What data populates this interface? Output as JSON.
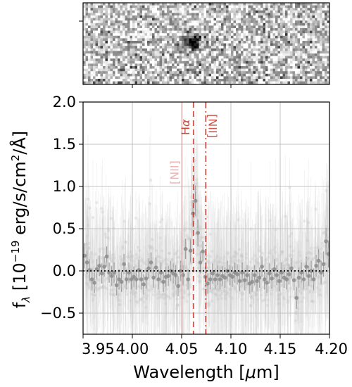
{
  "chart_data": [
    {
      "type": "heatmap",
      "panel": "2D spectrum cutout",
      "colormap": "grayscale (inverted)",
      "feature": "dark compact emission blob near 4.06 µm"
    },
    {
      "type": "scatter",
      "ylabel": "f$_\\lambda$ [10$^{-19}$ erg/s/cm$^2$/$\\AA$]",
      "ylabel_parts": {
        "f": "f",
        "lambda": "λ",
        "open": " [10",
        "exp": "−19",
        "mid": " erg/s/cm",
        "sq": "2",
        "end": "/Å]"
      },
      "xlabel_parts": {
        "pre": "Wavelength [",
        "mu": "μ",
        "post": "m]"
      },
      "xlim": [
        3.95,
        4.2
      ],
      "ylim": [
        -0.75,
        2.0
      ],
      "x_ticks": [
        3.95,
        4.0,
        4.05,
        4.1,
        4.15,
        4.2
      ],
      "x_tick_labels": [
        "3.95",
        "4.00",
        "4.05",
        "4.10",
        "4.15",
        "4.20"
      ],
      "y_ticks": [
        -0.5,
        0.0,
        0.5,
        1.0,
        1.5,
        2.0
      ],
      "y_tick_labels": [
        "−0.5",
        "0.0",
        "0.5",
        "1.0",
        "1.5",
        "2.0"
      ],
      "grid": true,
      "zero_line": {
        "y": 0.0,
        "style": "dotted",
        "color": "#222222"
      },
      "emission_lines": [
        {
          "label_main": "H",
          "label_sub": "α",
          "x": 4.062,
          "style": "dashed",
          "color": "#c0392b",
          "opacity": 0.85,
          "label_rotation": "vertical"
        },
        {
          "label": "[NII]",
          "x": 4.0745,
          "style": "dashdot",
          "color": "#c0392b",
          "opacity": 0.85,
          "label_rotation": "vertical"
        },
        {
          "label": "[NII]",
          "x": 4.0505,
          "style": "solid",
          "color": "#e8a0a0",
          "opacity": 0.45,
          "label_rotation": "vertical"
        }
      ],
      "series": [
        {
          "marker_color": "#8c8c8c",
          "points": [
            {
              "x": 3.9515,
              "y": 0.18,
              "err": 0.15
            },
            {
              "x": 3.954,
              "y": 0.1,
              "err": 0.14
            },
            {
              "x": 3.9565,
              "y": 0.01,
              "err": 0.13
            },
            {
              "x": 3.959,
              "y": -0.1,
              "err": 0.13
            },
            {
              "x": 3.9615,
              "y": -0.14,
              "err": 0.12
            },
            {
              "x": 3.964,
              "y": 0.02,
              "err": 0.12
            },
            {
              "x": 3.9665,
              "y": 0.06,
              "err": 0.12
            },
            {
              "x": 3.969,
              "y": -0.03,
              "err": 0.12
            },
            {
              "x": 3.9715,
              "y": 0.05,
              "err": 0.12
            },
            {
              "x": 3.974,
              "y": 0.17,
              "err": 0.12
            },
            {
              "x": 3.9765,
              "y": -0.02,
              "err": 0.12
            },
            {
              "x": 3.979,
              "y": -0.06,
              "err": 0.12
            },
            {
              "x": 3.9815,
              "y": -0.02,
              "err": 0.12
            },
            {
              "x": 3.984,
              "y": -0.17,
              "err": 0.12
            },
            {
              "x": 3.9865,
              "y": -0.1,
              "err": 0.12
            },
            {
              "x": 3.989,
              "y": -0.13,
              "err": 0.12
            },
            {
              "x": 3.9915,
              "y": 0.08,
              "err": 0.12
            },
            {
              "x": 3.994,
              "y": -0.1,
              "err": 0.12
            },
            {
              "x": 3.9965,
              "y": -0.02,
              "err": 0.12
            },
            {
              "x": 3.999,
              "y": -0.1,
              "err": 0.12
            },
            {
              "x": 4.0015,
              "y": -0.07,
              "err": 0.12
            },
            {
              "x": 4.004,
              "y": -0.1,
              "err": 0.12
            },
            {
              "x": 4.0065,
              "y": 0.01,
              "err": 0.12
            },
            {
              "x": 4.009,
              "y": -0.1,
              "err": 0.12
            },
            {
              "x": 4.0115,
              "y": -0.16,
              "err": 0.12
            },
            {
              "x": 4.014,
              "y": -0.09,
              "err": 0.12
            },
            {
              "x": 4.0165,
              "y": 0.03,
              "err": 0.12
            },
            {
              "x": 4.019,
              "y": 0.1,
              "err": 0.12
            },
            {
              "x": 4.0215,
              "y": -0.08,
              "err": 0.12
            },
            {
              "x": 4.024,
              "y": 0.04,
              "err": 0.12
            },
            {
              "x": 4.0265,
              "y": -0.1,
              "err": 0.12
            },
            {
              "x": 4.029,
              "y": -0.02,
              "err": 0.12
            },
            {
              "x": 4.0315,
              "y": -0.13,
              "err": 0.12
            },
            {
              "x": 4.034,
              "y": -0.07,
              "err": 0.12
            },
            {
              "x": 4.0365,
              "y": -0.06,
              "err": 0.12
            },
            {
              "x": 4.039,
              "y": 0.0,
              "err": 0.12
            },
            {
              "x": 4.0415,
              "y": -0.03,
              "err": 0.12
            },
            {
              "x": 4.044,
              "y": -0.05,
              "err": 0.12
            },
            {
              "x": 4.0465,
              "y": -0.18,
              "err": 0.12
            },
            {
              "x": 4.049,
              "y": 0.0,
              "err": 0.12
            },
            {
              "x": 4.0515,
              "y": -0.05,
              "err": 0.12
            },
            {
              "x": 4.054,
              "y": 0.26,
              "err": 0.12
            },
            {
              "x": 4.0565,
              "y": -0.1,
              "err": 0.12
            },
            {
              "x": 4.059,
              "y": 0.24,
              "err": 0.14
            },
            {
              "x": 4.0615,
              "y": 0.68,
              "err": 0.16
            },
            {
              "x": 4.064,
              "y": 0.83,
              "err": 0.18
            },
            {
              "x": 4.0665,
              "y": 0.45,
              "err": 0.16
            },
            {
              "x": 4.069,
              "y": 0.1,
              "err": 0.13
            },
            {
              "x": 4.0715,
              "y": 0.23,
              "err": 0.12
            },
            {
              "x": 4.074,
              "y": -0.07,
              "err": 0.12
            },
            {
              "x": 4.0765,
              "y": -0.15,
              "err": 0.12
            },
            {
              "x": 4.079,
              "y": -0.1,
              "err": 0.12
            },
            {
              "x": 4.0815,
              "y": -0.03,
              "err": 0.12
            },
            {
              "x": 4.084,
              "y": -0.1,
              "err": 0.12
            },
            {
              "x": 4.0865,
              "y": -0.05,
              "err": 0.12
            },
            {
              "x": 4.089,
              "y": -0.1,
              "err": 0.12
            },
            {
              "x": 4.0915,
              "y": -0.06,
              "err": 0.12
            },
            {
              "x": 4.094,
              "y": -0.08,
              "err": 0.12
            },
            {
              "x": 4.0965,
              "y": 0.0,
              "err": 0.12
            },
            {
              "x": 4.099,
              "y": -0.05,
              "err": 0.12
            },
            {
              "x": 4.1015,
              "y": -0.07,
              "err": 0.12
            },
            {
              "x": 4.104,
              "y": -0.02,
              "err": 0.12
            },
            {
              "x": 4.1065,
              "y": -0.04,
              "err": 0.12
            },
            {
              "x": 4.109,
              "y": -0.12,
              "err": 0.12
            },
            {
              "x": 4.1115,
              "y": -0.02,
              "err": 0.12
            },
            {
              "x": 4.114,
              "y": -0.11,
              "err": 0.12
            },
            {
              "x": 4.1165,
              "y": -0.05,
              "err": 0.12
            },
            {
              "x": 4.119,
              "y": -0.15,
              "err": 0.12
            },
            {
              "x": 4.1215,
              "y": -0.13,
              "err": 0.12
            },
            {
              "x": 4.124,
              "y": -0.05,
              "err": 0.12
            },
            {
              "x": 4.1265,
              "y": -0.12,
              "err": 0.12
            },
            {
              "x": 4.129,
              "y": -0.08,
              "err": 0.12
            },
            {
              "x": 4.1315,
              "y": 0.05,
              "err": 0.12
            },
            {
              "x": 4.134,
              "y": -0.1,
              "err": 0.12
            },
            {
              "x": 4.1365,
              "y": -0.14,
              "err": 0.12
            },
            {
              "x": 4.139,
              "y": -0.03,
              "err": 0.12
            },
            {
              "x": 4.1415,
              "y": -0.09,
              "err": 0.12
            },
            {
              "x": 4.144,
              "y": 0.02,
              "err": 0.12
            },
            {
              "x": 4.1465,
              "y": -0.05,
              "err": 0.12
            },
            {
              "x": 4.149,
              "y": -0.12,
              "err": 0.12
            },
            {
              "x": 4.1515,
              "y": -0.02,
              "err": 0.12
            },
            {
              "x": 4.154,
              "y": -0.08,
              "err": 0.12
            },
            {
              "x": 4.1565,
              "y": -0.1,
              "err": 0.12
            },
            {
              "x": 4.159,
              "y": -0.04,
              "err": 0.12
            },
            {
              "x": 4.1615,
              "y": 0.03,
              "err": 0.12
            },
            {
              "x": 4.164,
              "y": -0.11,
              "err": 0.12
            },
            {
              "x": 4.1665,
              "y": -0.32,
              "err": 0.13
            },
            {
              "x": 4.169,
              "y": -0.08,
              "err": 0.12
            },
            {
              "x": 4.1715,
              "y": -0.02,
              "err": 0.12
            },
            {
              "x": 4.174,
              "y": -0.1,
              "err": 0.12
            },
            {
              "x": 4.1765,
              "y": 0.05,
              "err": 0.12
            },
            {
              "x": 4.179,
              "y": -0.06,
              "err": 0.12
            },
            {
              "x": 4.1815,
              "y": 0.0,
              "err": 0.12
            },
            {
              "x": 4.184,
              "y": -0.1,
              "err": 0.13
            },
            {
              "x": 4.1865,
              "y": 0.06,
              "err": 0.13
            },
            {
              "x": 4.189,
              "y": 0.12,
              "err": 0.14
            },
            {
              "x": 4.1915,
              "y": -0.02,
              "err": 0.14
            },
            {
              "x": 4.194,
              "y": 0.08,
              "err": 0.15
            },
            {
              "x": 4.1965,
              "y": 0.35,
              "err": 0.16
            },
            {
              "x": 4.199,
              "y": 0.2,
              "err": 0.16
            }
          ]
        }
      ]
    }
  ]
}
